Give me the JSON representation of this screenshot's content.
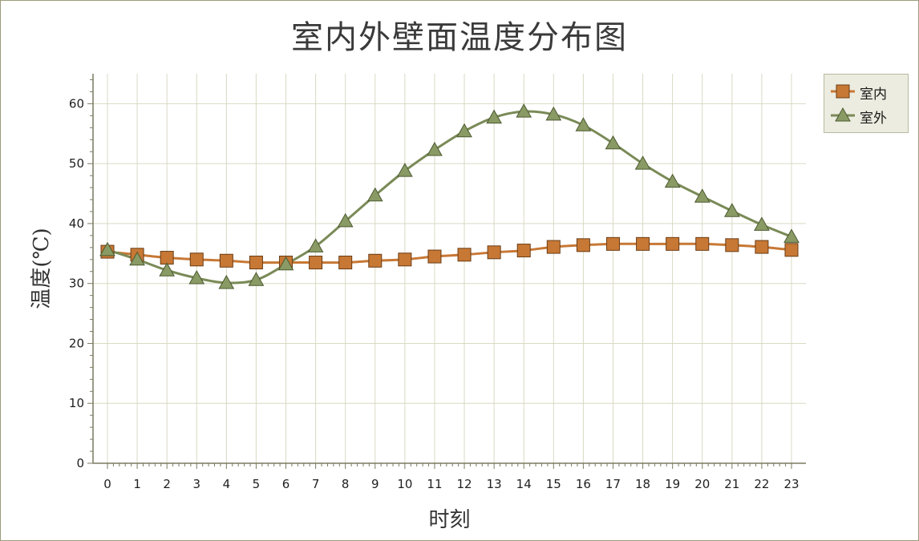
{
  "chart_data": {
    "type": "line",
    "title": "室内外壁面温度分布图",
    "xlabel": "时刻",
    "ylabel": "温度(℃)",
    "x": [
      0,
      1,
      2,
      3,
      4,
      5,
      6,
      7,
      8,
      9,
      10,
      11,
      12,
      13,
      14,
      15,
      16,
      17,
      18,
      19,
      20,
      21,
      22,
      23
    ],
    "ylim": [
      0,
      65
    ],
    "yticks": [
      0,
      10,
      20,
      30,
      40,
      50,
      60
    ],
    "grid": true,
    "legend_position": "top-right",
    "series": [
      {
        "name": "室内",
        "color": "#c77835",
        "marker": "square",
        "values": [
          35.3,
          34.8,
          34.3,
          34.0,
          33.8,
          33.5,
          33.5,
          33.5,
          33.5,
          33.8,
          34.0,
          34.5,
          34.8,
          35.2,
          35.5,
          36.1,
          36.4,
          36.6,
          36.6,
          36.6,
          36.6,
          36.4,
          36.1,
          35.6
        ]
      },
      {
        "name": "室外",
        "color": "#7a8a57",
        "marker": "triangle",
        "values": [
          35.6,
          34.0,
          32.2,
          30.9,
          30.1,
          30.6,
          33.2,
          36.2,
          40.4,
          44.7,
          48.8,
          52.3,
          55.4,
          57.7,
          58.7,
          58.2,
          56.4,
          53.4,
          50.0,
          47.0,
          44.5,
          42.1,
          39.8,
          37.8
        ]
      }
    ]
  }
}
